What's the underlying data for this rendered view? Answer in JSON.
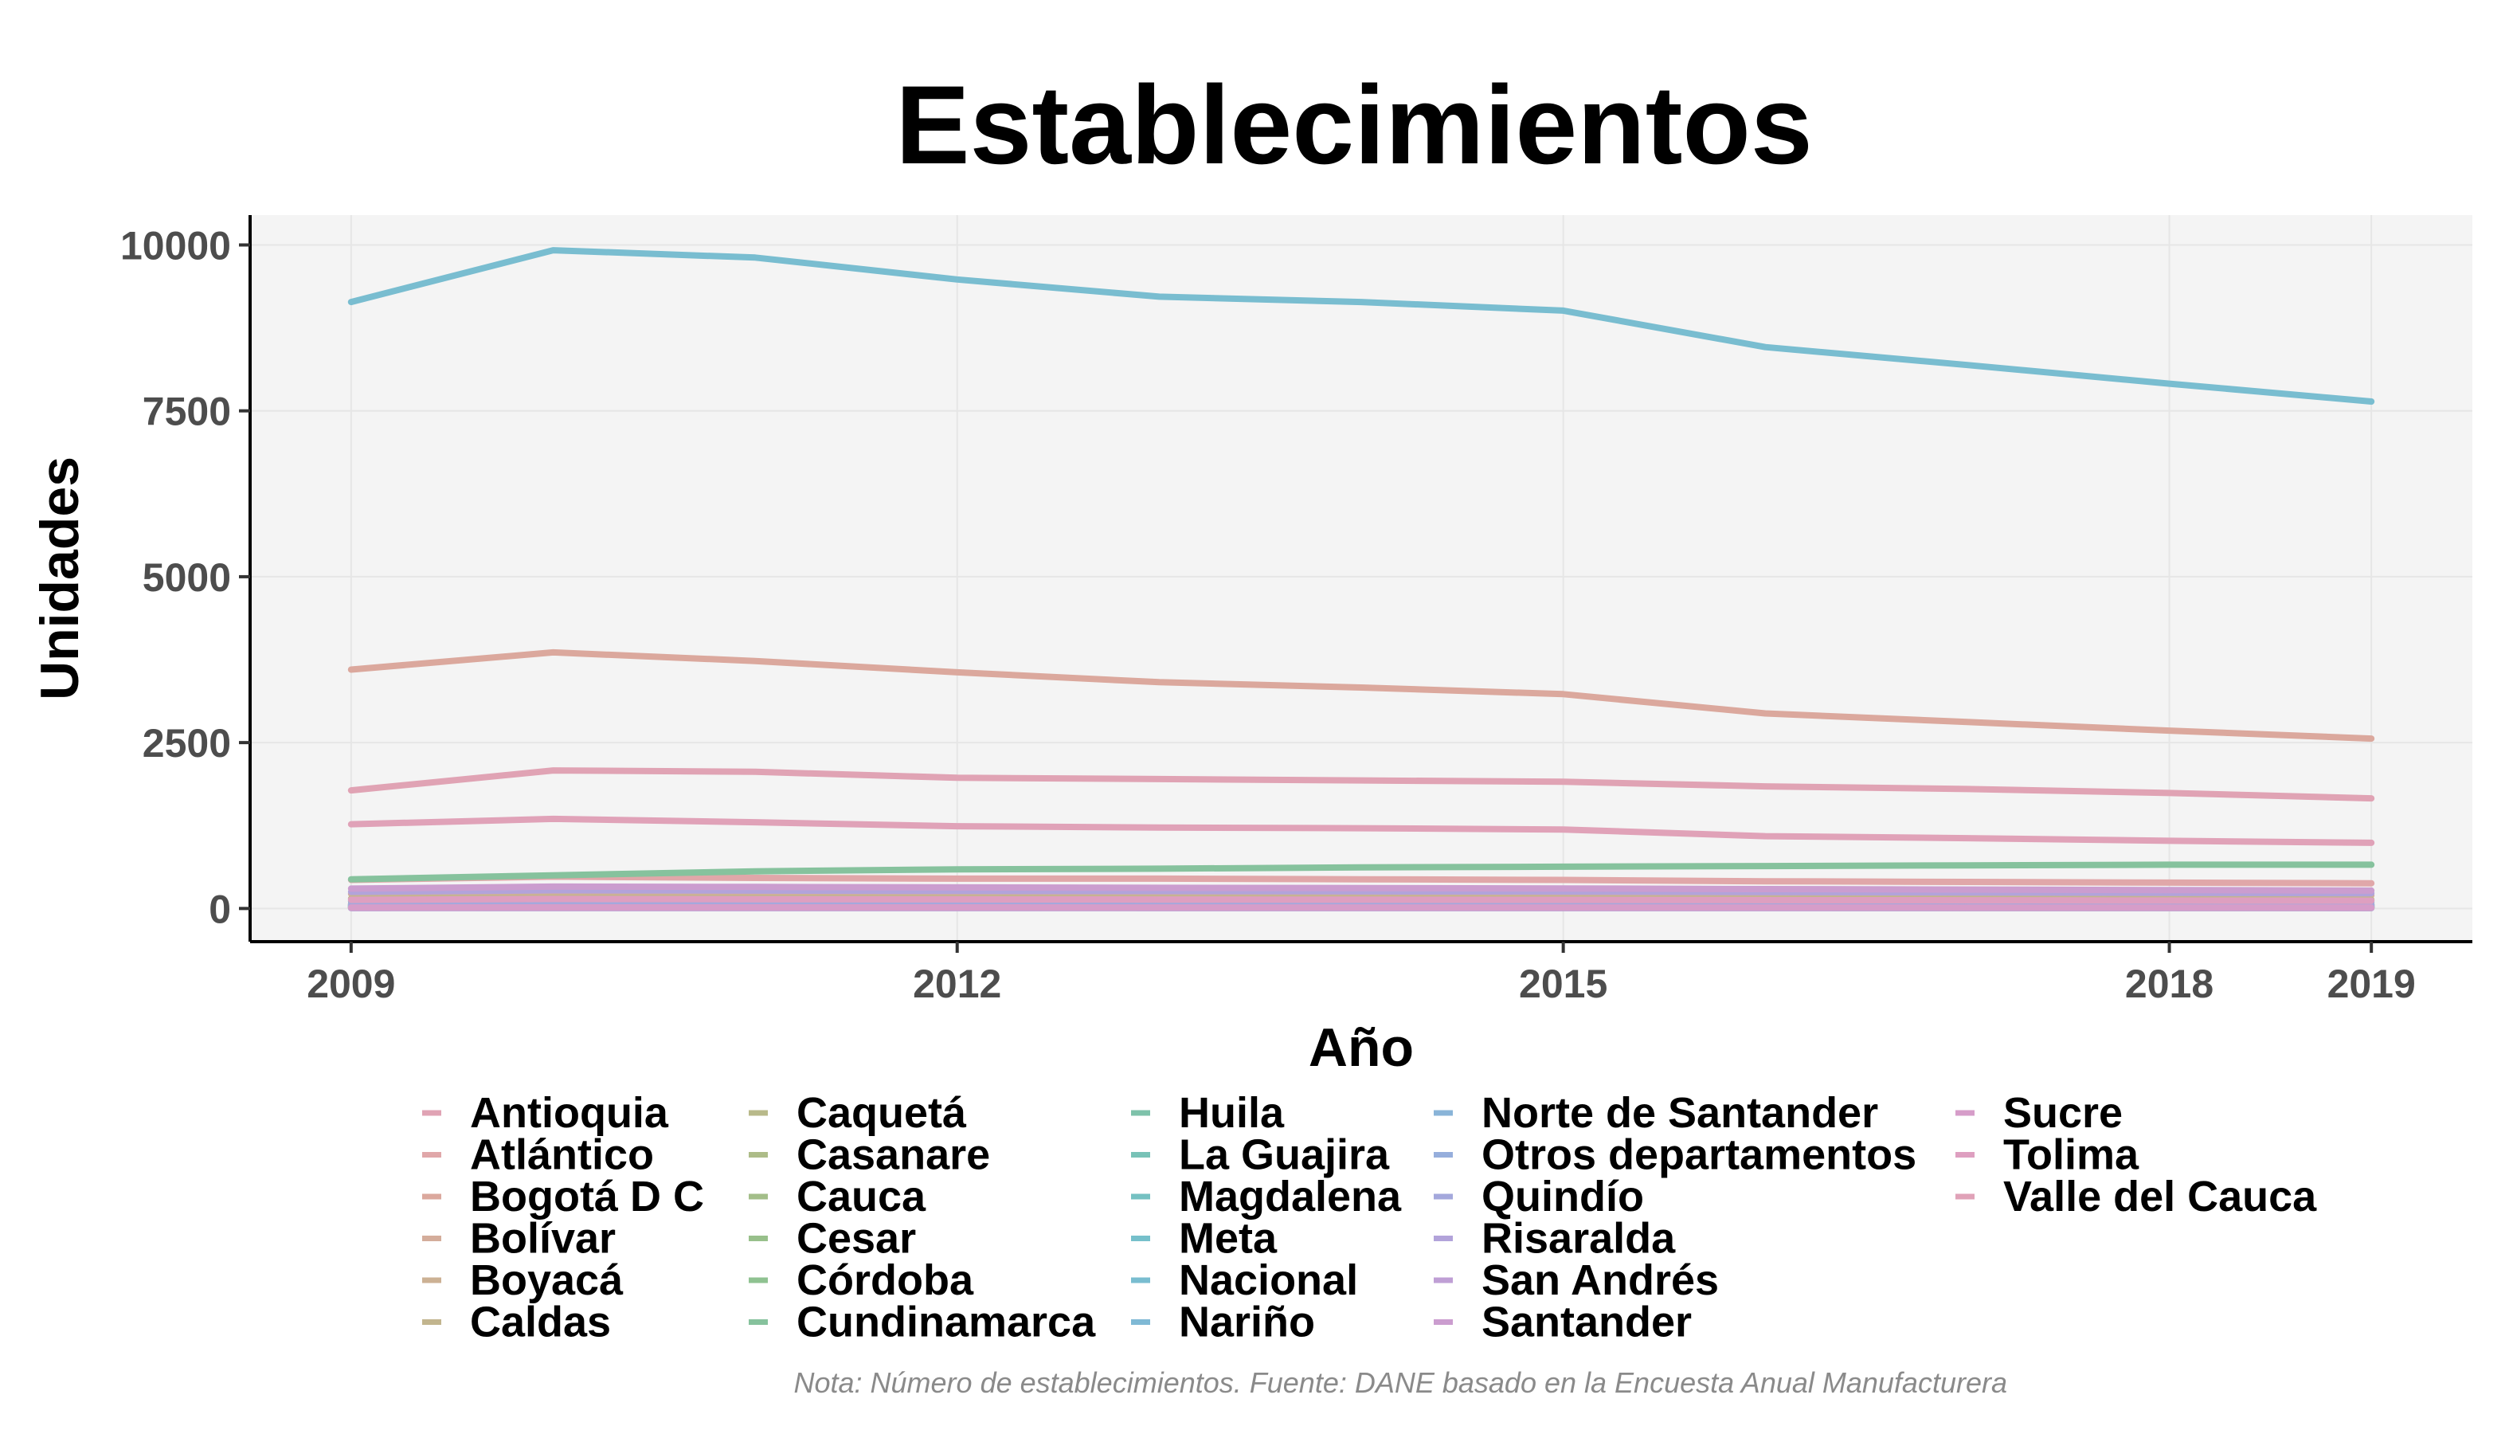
{
  "chart_data": {
    "type": "line",
    "title": "Establecimientos",
    "xlabel": "Año",
    "ylabel": "Unidades",
    "caption": "Nota: Número de establecimientos. Fuente: DANE basado en la Encuesta Anual Manufacturera",
    "x": [
      2009,
      2010,
      2011,
      2012,
      2013,
      2014,
      2015,
      2016,
      2017,
      2018,
      2019
    ],
    "x_ticks": [
      2009,
      2012,
      2015,
      2018,
      2019
    ],
    "y_ticks": [
      0,
      2500,
      5000,
      7500,
      10000
    ],
    "xlim": [
      2008.5,
      2019.5
    ],
    "ylim": [
      -500,
      10450
    ],
    "grid": true,
    "legend_position": "bottom",
    "series": [
      {
        "name": "Antioquia",
        "color": "#e0a3b4",
        "values": [
          1780,
          2080,
          2060,
          1970,
          1950,
          1930,
          1910,
          1840,
          1800,
          1740,
          1660
        ]
      },
      {
        "name": "Atlántico",
        "color": "#e0a7a9",
        "values": [
          430,
          480,
          460,
          450,
          450,
          440,
          430,
          410,
          400,
          390,
          380
        ]
      },
      {
        "name": "Bogotá D C",
        "color": "#dba89d",
        "values": [
          3600,
          3860,
          3730,
          3560,
          3410,
          3330,
          3230,
          2940,
          2810,
          2680,
          2560
        ]
      },
      {
        "name": "Bolívar",
        "color": "#d4ad9b",
        "values": [
          220,
          240,
          235,
          230,
          225,
          225,
          220,
          215,
          210,
          205,
          200
        ]
      },
      {
        "name": "Boyacá",
        "color": "#ccb194",
        "values": [
          70,
          80,
          78,
          76,
          75,
          74,
          72,
          70,
          68,
          66,
          64
        ]
      },
      {
        "name": "Caldas",
        "color": "#c2b58e",
        "values": [
          150,
          165,
          160,
          158,
          156,
          154,
          150,
          146,
          142,
          138,
          134
        ]
      },
      {
        "name": "Caquetá",
        "color": "#b8b98a",
        "values": [
          10,
          12,
          11,
          11,
          10,
          10,
          10,
          10,
          9,
          9,
          9
        ]
      },
      {
        "name": "Casanare",
        "color": "#adbc88",
        "values": [
          12,
          14,
          13,
          13,
          12,
          12,
          12,
          12,
          11,
          11,
          11
        ]
      },
      {
        "name": "Cauca",
        "color": "#a3be89",
        "values": [
          60,
          66,
          65,
          64,
          63,
          62,
          61,
          60,
          59,
          58,
          57
        ]
      },
      {
        "name": "Cesar",
        "color": "#98c08b",
        "values": [
          30,
          33,
          32,
          32,
          31,
          31,
          30,
          30,
          29,
          29,
          28
        ]
      },
      {
        "name": "Córdoba",
        "color": "#8fc291",
        "values": [
          25,
          28,
          27,
          27,
          26,
          26,
          25,
          25,
          24,
          24,
          23
        ]
      },
      {
        "name": "Cundinamarca",
        "color": "#86c29d",
        "values": [
          440,
          500,
          560,
          590,
          600,
          620,
          630,
          640,
          650,
          660,
          660
        ]
      },
      {
        "name": "Huila",
        "color": "#7ec2aa",
        "values": [
          40,
          44,
          43,
          42,
          42,
          41,
          40,
          40,
          39,
          38,
          38
        ]
      },
      {
        "name": "La Guajira",
        "color": "#78c2b7",
        "values": [
          8,
          9,
          9,
          9,
          8,
          8,
          8,
          8,
          8,
          7,
          7
        ]
      },
      {
        "name": "Magdalena",
        "color": "#75c1c2",
        "values": [
          35,
          38,
          37,
          37,
          36,
          36,
          35,
          35,
          34,
          34,
          33
        ]
      },
      {
        "name": "Meta",
        "color": "#76c0cb",
        "values": [
          45,
          50,
          49,
          48,
          48,
          47,
          46,
          45,
          44,
          43,
          42
        ]
      },
      {
        "name": "Nacional",
        "color": "#79bdd0",
        "values": [
          9140,
          9920,
          9810,
          9480,
          9220,
          9140,
          9010,
          8460,
          8190,
          7910,
          7640
        ]
      },
      {
        "name": "Nariño",
        "color": "#7fb9d5",
        "values": [
          50,
          55,
          54,
          53,
          52,
          51,
          50,
          49,
          48,
          47,
          46
        ]
      },
      {
        "name": "Norte de Santander",
        "color": "#89b4d8",
        "values": [
          110,
          120,
          118,
          116,
          114,
          112,
          110,
          107,
          104,
          101,
          98
        ]
      },
      {
        "name": "Otros departamentos",
        "color": "#96aedc",
        "values": [
          20,
          22,
          21,
          21,
          20,
          20,
          20,
          19,
          19,
          18,
          18
        ]
      },
      {
        "name": "Quindío",
        "color": "#a4a8dc",
        "values": [
          60,
          66,
          65,
          64,
          63,
          62,
          61,
          60,
          59,
          58,
          57
        ]
      },
      {
        "name": "Risaralda",
        "color": "#b2a3da",
        "values": [
          250,
          275,
          270,
          265,
          262,
          258,
          255,
          248,
          242,
          236,
          230
        ]
      },
      {
        "name": "San Andrés",
        "color": "#bf9fd5",
        "values": [
          5,
          6,
          6,
          6,
          5,
          5,
          5,
          5,
          5,
          5,
          5
        ]
      },
      {
        "name": "Santander",
        "color": "#cb9dcf",
        "values": [
          300,
          330,
          325,
          318,
          312,
          308,
          302,
          292,
          285,
          278,
          270
        ]
      },
      {
        "name": "Sucre",
        "color": "#d69dc9",
        "values": [
          15,
          16,
          16,
          16,
          15,
          15,
          15,
          15,
          14,
          14,
          14
        ]
      },
      {
        "name": "Tolima",
        "color": "#de9fc0",
        "values": [
          130,
          143,
          140,
          137,
          135,
          133,
          130,
          126,
          123,
          120,
          117
        ]
      },
      {
        "name": "Valle del Cauca",
        "color": "#e0a2b8",
        "values": [
          1270,
          1350,
          1300,
          1240,
          1220,
          1210,
          1190,
          1090,
          1060,
          1020,
          990
        ]
      }
    ]
  }
}
